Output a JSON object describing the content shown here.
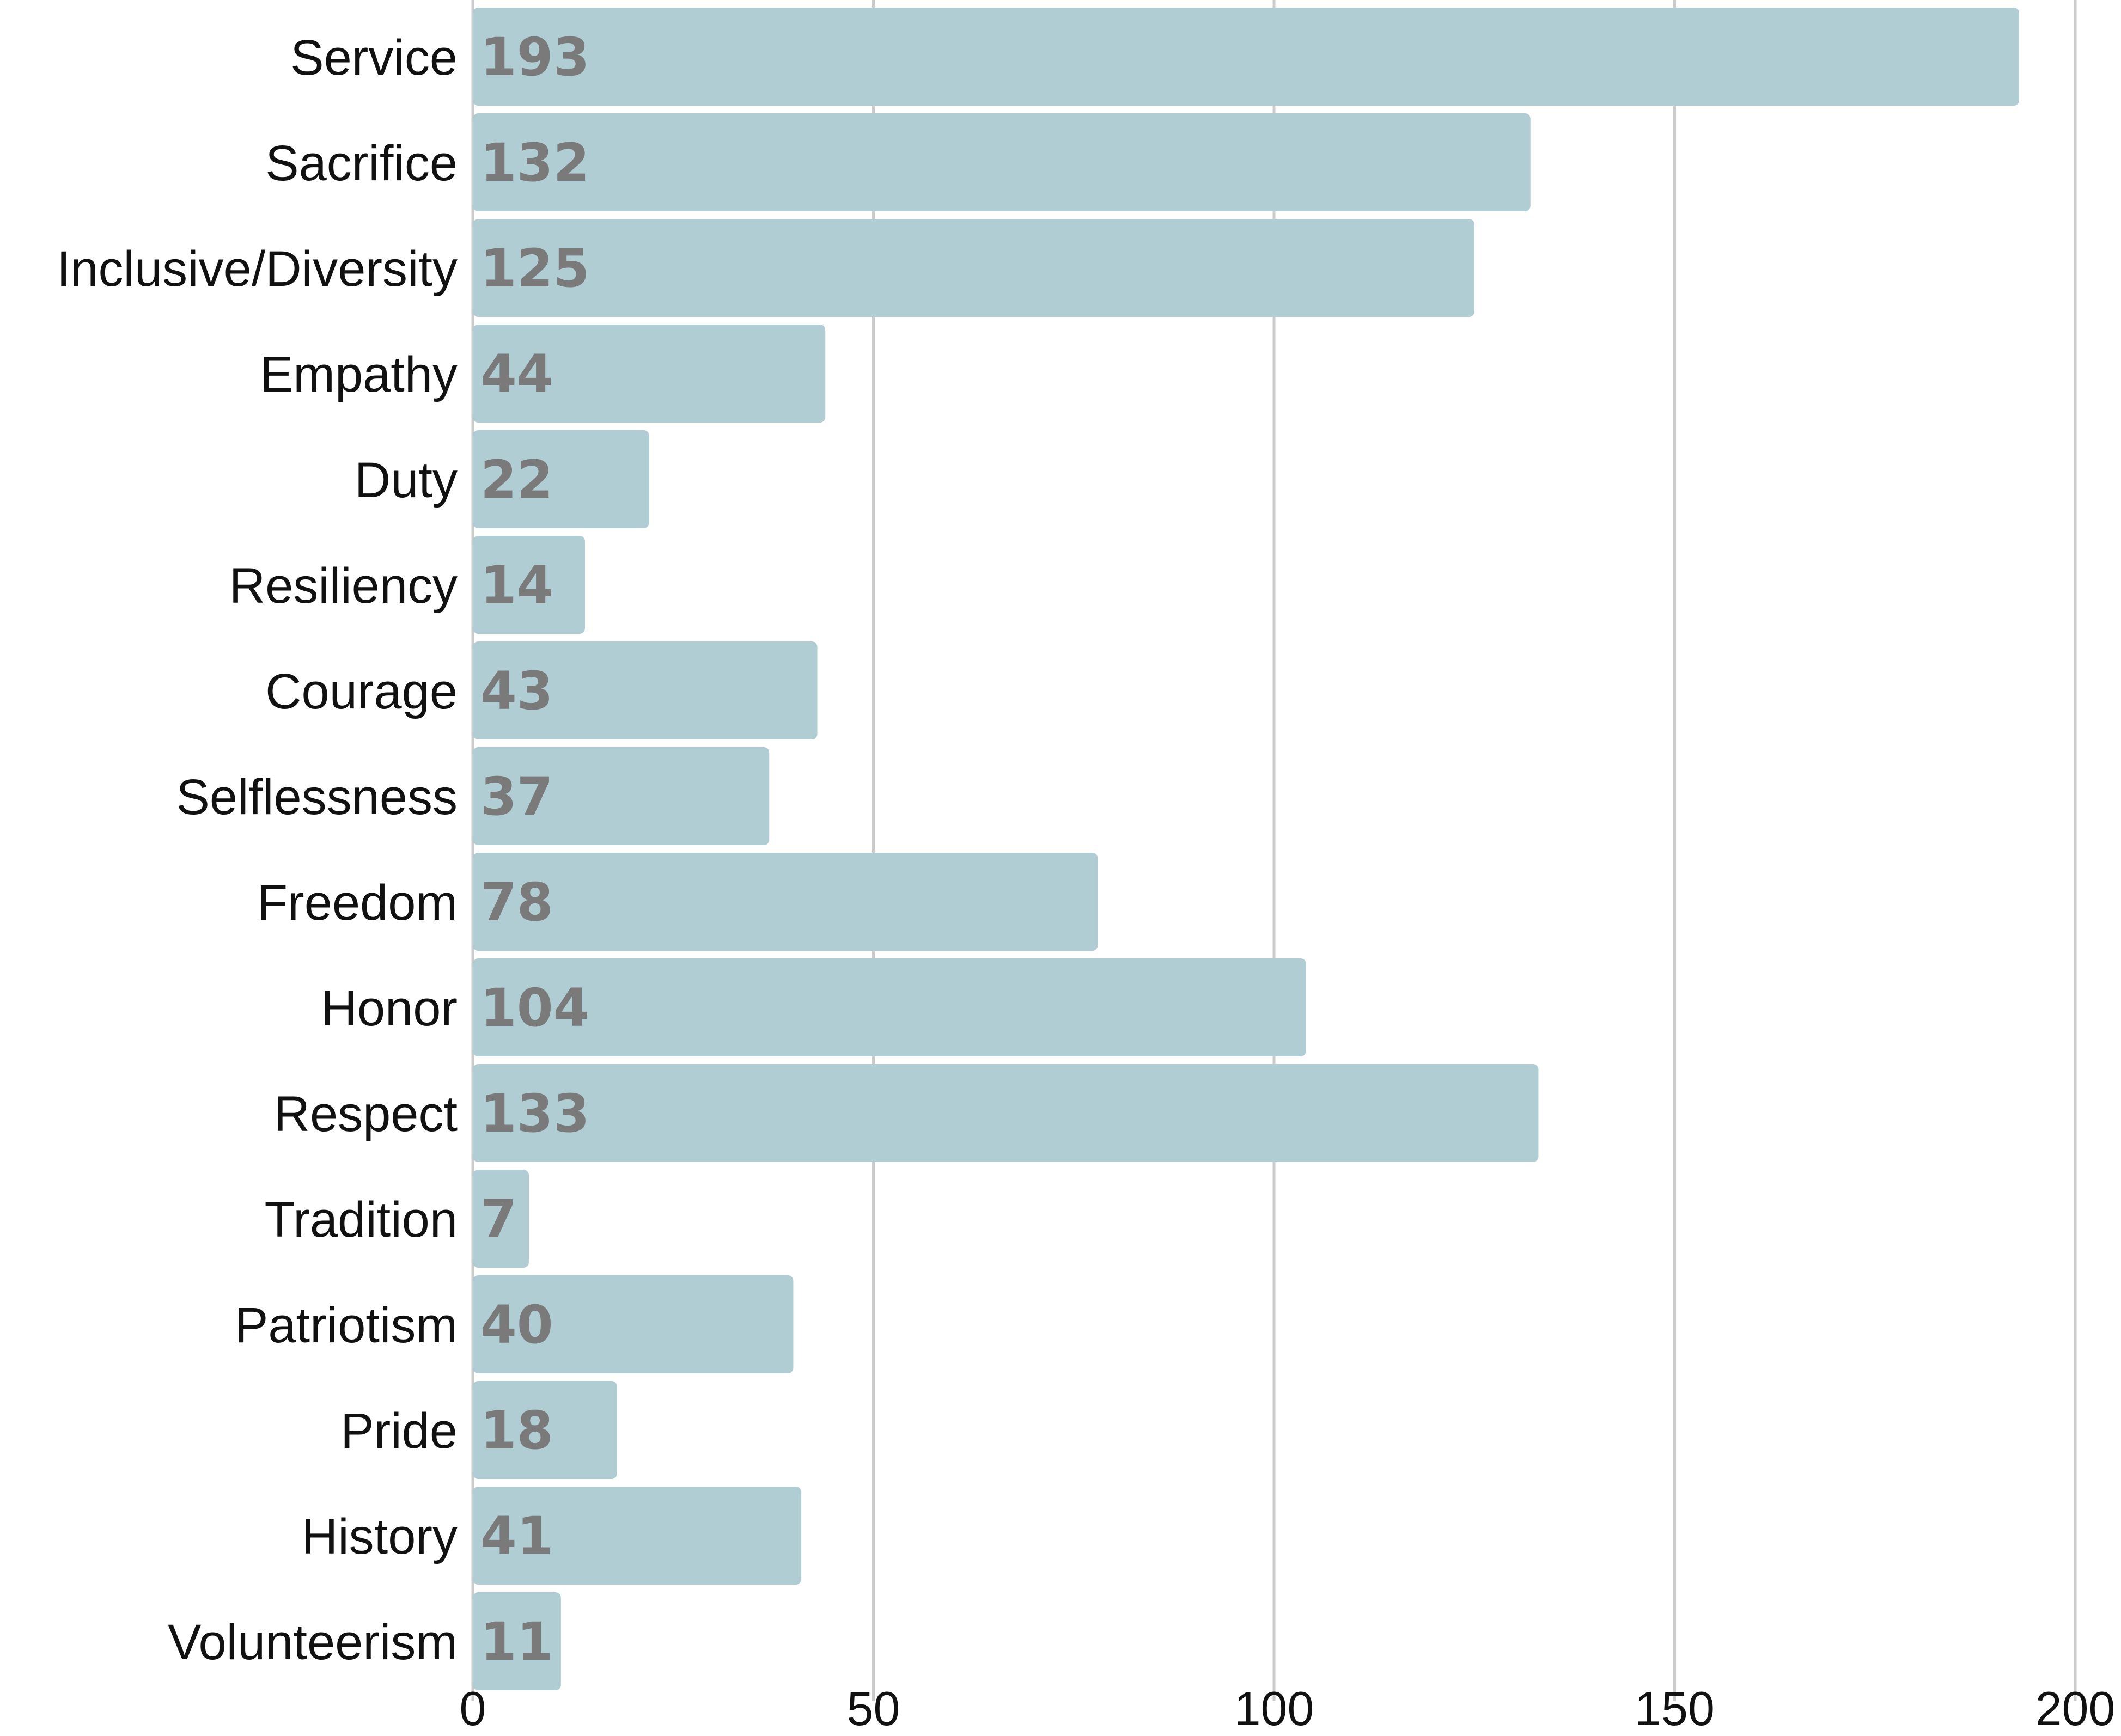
{
  "chart_data": {
    "type": "bar",
    "orientation": "horizontal",
    "categories": [
      "Service",
      "Sacrifice",
      "Inclusive/Diversity",
      "Empathy",
      "Duty",
      "Resiliency",
      "Courage",
      "Selflessness",
      "Freedom",
      "Honor",
      "Respect",
      "Tradition",
      "Patriotism",
      "Pride",
      "History",
      "Volunteerism"
    ],
    "values": [
      193,
      132,
      125,
      44,
      22,
      14,
      43,
      37,
      78,
      104,
      133,
      7,
      40,
      18,
      41,
      11
    ],
    "value_labels": [
      "193",
      "132",
      "125",
      "44",
      "22",
      "14",
      "43",
      "37",
      "78",
      "104",
      "133",
      "7",
      "40",
      "18",
      "41",
      "11"
    ],
    "xlim": [
      0,
      200
    ],
    "xticks": [
      0,
      50,
      100,
      150,
      200
    ],
    "xtick_labels": [
      "0",
      "50",
      "100",
      "150",
      "200"
    ],
    "title": "",
    "xlabel": "",
    "ylabel": "",
    "grid": "vertical",
    "legend": "none",
    "bar_color": "#b0cdd3",
    "value_label_color": "#7a7a7a",
    "grid_color": "#cccccc"
  }
}
